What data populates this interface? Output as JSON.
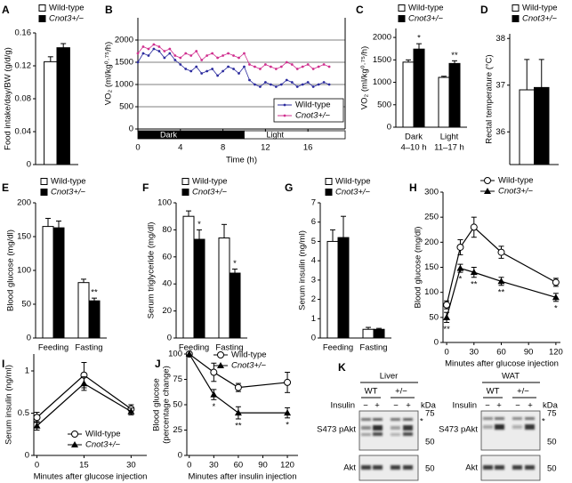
{
  "chart_data": [
    {
      "panel": "A",
      "type": "bar",
      "ylabel": [
        "Food intake/day/BW (g/d/g)"
      ],
      "ylim": [
        0,
        0.16
      ],
      "yticks": [
        0,
        0.04,
        0.08,
        0.12,
        0.16
      ],
      "categories": [
        null
      ],
      "legend": true,
      "series": [
        {
          "name": "Wild-type",
          "color": "#ffffff",
          "values": [
            0.125
          ],
          "errors": [
            0.006
          ]
        },
        {
          "name": "Cnot3+/−",
          "color": "#000000",
          "values": [
            0.142
          ],
          "errors": [
            0.005
          ]
        }
      ]
    },
    {
      "panel": "B",
      "type": "line",
      "ylabel": [
        "VO₂ (ml/kg⁰·⁷⁵/h)"
      ],
      "xlabel": "Time (h)",
      "xlim": [
        0,
        19.5
      ],
      "xticks": [
        0,
        4,
        8,
        12,
        16
      ],
      "ylim": [
        0,
        2500
      ],
      "yticks": [
        0,
        500,
        1000,
        1500,
        2000
      ],
      "grid": true,
      "legend": true,
      "periods": [
        {
          "label": "Dark",
          "start": 0,
          "end": 10,
          "color": "#000000"
        },
        {
          "label": "Light",
          "start": 10,
          "end": 19.5,
          "color": "#ffffff"
        }
      ],
      "x": [
        0,
        0.5,
        1,
        1.5,
        2,
        2.5,
        3,
        3.5,
        4,
        4.5,
        5,
        5.5,
        6,
        6.5,
        7,
        7.5,
        8,
        8.5,
        9,
        9.5,
        10,
        10.5,
        11,
        11.5,
        12,
        12.5,
        13,
        13.5,
        14,
        14.5,
        15,
        15.5,
        16,
        16.5,
        17,
        17.5,
        18
      ],
      "series": [
        {
          "name": "Wild-type",
          "color": "#2b2b9e",
          "marker": "dot",
          "values": [
            1500,
            1700,
            1650,
            1800,
            1750,
            1600,
            1700,
            1550,
            1450,
            1350,
            1300,
            1400,
            1250,
            1300,
            1350,
            1200,
            1300,
            1400,
            1350,
            1250,
            1400,
            1100,
            1000,
            950,
            1050,
            1000,
            950,
            1000,
            1100,
            1050,
            950,
            1000,
            1050,
            950,
            1000,
            1050,
            1000
          ]
        },
        {
          "name": "Cnot3+/−",
          "color": "#d0308f",
          "marker": "dot",
          "values": [
            1700,
            1850,
            1800,
            1900,
            1850,
            1750,
            1800,
            1650,
            1600,
            1700,
            1650,
            1750,
            1550,
            1650,
            1700,
            1600,
            1650,
            1700,
            1650,
            1600,
            1700,
            1450,
            1400,
            1350,
            1450,
            1400,
            1350,
            1400,
            1500,
            1450,
            1350,
            1400,
            1450,
            1350,
            1400,
            1450,
            1400
          ]
        }
      ]
    },
    {
      "panel": "C",
      "type": "bar",
      "ylabel": [
        "VO₂ (ml/kg⁰·⁷⁵/h)"
      ],
      "ylim": [
        0,
        2200
      ],
      "yticks": [
        0,
        500,
        1000,
        1500,
        2000
      ],
      "categories": [
        "Dark",
        "Light"
      ],
      "category_sublabels": [
        "4–10 h",
        "11–17 h"
      ],
      "legend": true,
      "series": [
        {
          "name": "Wild-type",
          "color": "#ffffff",
          "values": [
            1450,
            1110
          ],
          "errors": [
            50,
            25
          ]
        },
        {
          "name": "Cnot3+/−",
          "color": "#000000",
          "values": [
            1740,
            1420
          ],
          "errors": [
            120,
            60
          ],
          "significance": [
            "*",
            "**"
          ]
        }
      ]
    },
    {
      "panel": "D",
      "type": "bar",
      "ylabel": [
        "Rectal temperature (°C)"
      ],
      "ylim": [
        35.3,
        38.1
      ],
      "yticks": [
        36,
        37,
        38
      ],
      "categories": [
        null
      ],
      "legend": true,
      "series": [
        {
          "name": "Wild-type",
          "color": "#ffffff",
          "values": [
            36.9
          ],
          "errors": [
            0.65
          ]
        },
        {
          "name": "Cnot3+/−",
          "color": "#000000",
          "values": [
            36.95
          ],
          "errors": [
            0.6
          ]
        }
      ]
    },
    {
      "panel": "E",
      "type": "bar",
      "ylabel": [
        "Blood glucose (mg/dl)"
      ],
      "ylim": [
        0,
        200
      ],
      "yticks": [
        0,
        50,
        100,
        150,
        200
      ],
      "categories": [
        "Feeding",
        "Fasting"
      ],
      "legend": true,
      "series": [
        {
          "name": "Wild-type",
          "color": "#ffffff",
          "values": [
            165,
            82
          ],
          "errors": [
            12,
            5
          ]
        },
        {
          "name": "Cnot3+/−",
          "color": "#000000",
          "values": [
            163,
            55
          ],
          "errors": [
            10,
            4
          ],
          "significance": [
            null,
            "**"
          ]
        }
      ]
    },
    {
      "panel": "F",
      "type": "bar",
      "ylabel": [
        "Serum triglyceride (mg/dl)"
      ],
      "ylim": [
        0,
        100
      ],
      "yticks": [
        0,
        20,
        40,
        60,
        80,
        100
      ],
      "categories": [
        "Feeding",
        "Fasting"
      ],
      "legend": true,
      "series": [
        {
          "name": "Wild-type",
          "color": "#ffffff",
          "values": [
            90,
            74
          ],
          "errors": [
            4,
            10
          ]
        },
        {
          "name": "Cnot3+/−",
          "color": "#000000",
          "values": [
            73,
            48
          ],
          "errors": [
            7,
            3
          ],
          "significance": [
            "*",
            "*"
          ]
        }
      ]
    },
    {
      "panel": "G",
      "type": "bar",
      "ylabel": [
        "Serum insulin (ng/ml)"
      ],
      "ylim": [
        0,
        7
      ],
      "yticks": [
        0,
        1,
        2,
        3,
        4,
        5,
        6,
        7
      ],
      "categories": [
        "Feeding",
        "Fasting"
      ],
      "legend": true,
      "series": [
        {
          "name": "Wild-type",
          "color": "#ffffff",
          "values": [
            5.0,
            0.45
          ],
          "errors": [
            0.6,
            0.1
          ]
        },
        {
          "name": "Cnot3+/−",
          "color": "#000000",
          "values": [
            5.2,
            0.45
          ],
          "errors": [
            1.1,
            0.05
          ]
        }
      ]
    },
    {
      "panel": "H",
      "type": "line",
      "ylabel": [
        "Blood glucose (mg/dl)"
      ],
      "xlabel": "Minutes after glucose injection",
      "xlim": [
        -4,
        125
      ],
      "xticks": [
        0,
        30,
        60,
        90,
        120
      ],
      "ylim": [
        0,
        300
      ],
      "yticks": [
        0,
        50,
        100,
        150,
        200,
        250,
        300
      ],
      "legend": true,
      "x": [
        0,
        15,
        30,
        60,
        120
      ],
      "series": [
        {
          "name": "Wild-type",
          "color": "#000000",
          "marker": "circle-open",
          "values": [
            75,
            190,
            230,
            180,
            120
          ],
          "errors": [
            8,
            15,
            20,
            12,
            8
          ]
        },
        {
          "name": "Cnot3+/−",
          "color": "#000000",
          "marker": "triangle",
          "values": [
            50,
            148,
            140,
            122,
            90
          ],
          "errors": [
            10,
            8,
            10,
            8,
            8
          ],
          "significance": [
            "**",
            "*",
            "**",
            "**",
            "*"
          ]
        }
      ]
    },
    {
      "panel": "I",
      "type": "line",
      "ylabel": [
        "Serum insulin (ng/ml)"
      ],
      "xlabel": "Minutes after glucose injection",
      "xlim": [
        -1,
        35
      ],
      "xticks": [
        0,
        15,
        30
      ],
      "ylim": [
        0,
        1.2
      ],
      "yticks": [
        0,
        0.5,
        1
      ],
      "legend": true,
      "x": [
        0,
        15,
        30
      ],
      "series": [
        {
          "name": "Wild-type",
          "color": "#000000",
          "marker": "circle-open",
          "values": [
            0.45,
            0.95,
            0.55
          ],
          "errors": [
            0.06,
            0.15,
            0.05
          ]
        },
        {
          "name": "Cnot3+/−",
          "color": "#000000",
          "marker": "triangle",
          "values": [
            0.35,
            0.85,
            0.52
          ],
          "errors": [
            0.05,
            0.08,
            0.04
          ]
        }
      ]
    },
    {
      "panel": "J",
      "type": "line",
      "ylabel": [
        "Blood glucose",
        "(percentage change)"
      ],
      "xlabel": "Minutes after insulin injection",
      "xlim": [
        -3,
        133
      ],
      "xticks": [
        0,
        30,
        60,
        90,
        120
      ],
      "ylim": [
        0,
        100
      ],
      "yticks": [
        0,
        25,
        50,
        75,
        100
      ],
      "legend": true,
      "x": [
        0,
        30,
        60,
        120
      ],
      "series": [
        {
          "name": "Wild-type",
          "color": "#000000",
          "marker": "circle-open",
          "values": [
            100,
            82,
            67,
            72
          ],
          "errors": [
            0,
            9,
            4,
            10
          ]
        },
        {
          "name": "Cnot3+/−",
          "color": "#000000",
          "marker": "triangle",
          "values": [
            100,
            60,
            42,
            42
          ],
          "errors": [
            0,
            5,
            6,
            5
          ],
          "significance": [
            null,
            "*",
            "**",
            "*"
          ]
        }
      ]
    }
  ],
  "blots": {
    "panel": "K",
    "tissues": [
      "Liver",
      "WAT"
    ],
    "genotypes": [
      "WT",
      "+/−"
    ],
    "treatment": "Insulin",
    "lane_labels": [
      "−",
      "+",
      "−",
      "+"
    ],
    "unit": "kDa",
    "markers": [
      "75",
      "50"
    ],
    "bands": [
      "S473 pAkt",
      "Akt"
    ],
    "nonspecific": "*"
  }
}
